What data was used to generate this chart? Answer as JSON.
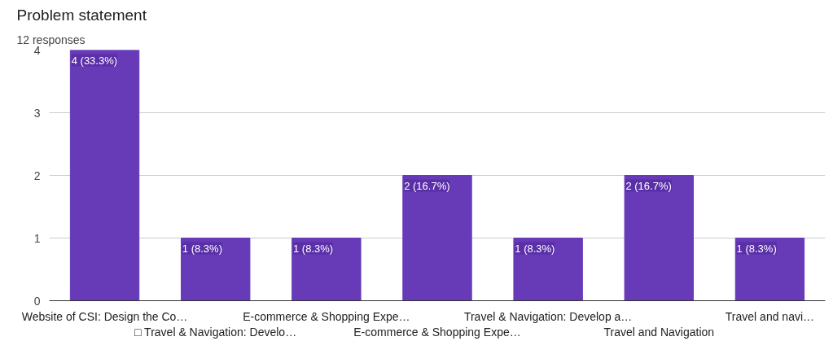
{
  "chart_data": {
    "type": "bar",
    "title": "Problem statement",
    "subtitle": "12 responses",
    "categories": [
      "Website of CSI: Design the Co…",
      "□ Travel & Navigation: Develo…",
      "E-commerce & Shopping Expe…",
      "E-commerce & Shopping Expe…",
      "Travel & Navigation: Develop a…",
      "Travel and Navigation",
      "Travel and navi…"
    ],
    "values": [
      4,
      1,
      1,
      2,
      1,
      2,
      1
    ],
    "value_labels": [
      "4 (33.3%)",
      "1 (8.3%)",
      "1 (8.3%)",
      "2 (16.7%)",
      "1 (8.3%)",
      "2 (16.7%)",
      "1 (8.3%)"
    ],
    "color": "#673ab7",
    "ylim": [
      0,
      4
    ],
    "yticks": [
      0,
      1,
      2,
      3,
      4
    ],
    "grid": "y"
  }
}
